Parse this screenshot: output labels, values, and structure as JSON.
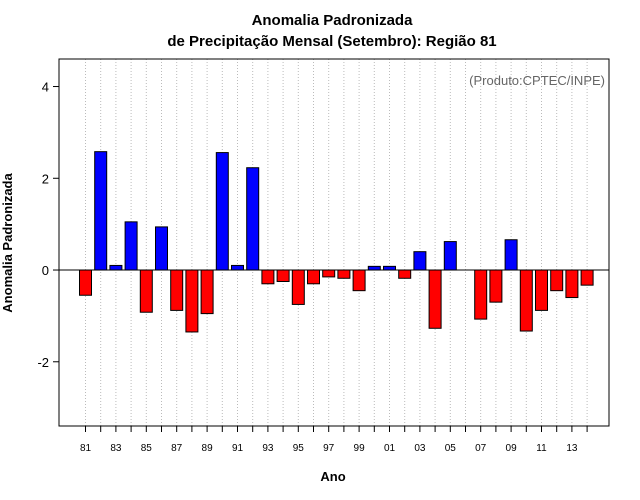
{
  "chart_data": {
    "type": "bar",
    "title": "Anomalia Padronizada",
    "subtitle": "de Precipitação Mensal (Setembro): Região 81",
    "xlabel": "Ano",
    "ylabel": "Anomalia Padronizada",
    "annotation": "(Produto:CPTEC/INPE)",
    "ylim": [
      -3.4,
      4.6
    ],
    "yticks": [
      -2,
      0,
      2,
      4
    ],
    "grid": "vertical dotted",
    "colors": {
      "positive": "#0000ff",
      "negative": "#ff0000",
      "grid": "#bbbbbb"
    },
    "categories": [
      "81",
      "82",
      "83",
      "84",
      "85",
      "86",
      "87",
      "88",
      "89",
      "90",
      "91",
      "92",
      "93",
      "94",
      "95",
      "96",
      "97",
      "98",
      "99",
      "00",
      "01",
      "02",
      "03",
      "04",
      "05",
      "06",
      "07",
      "08",
      "09",
      "10",
      "11",
      "12",
      "13",
      "14"
    ],
    "xtick_labels": [
      "81",
      "83",
      "85",
      "87",
      "89",
      "91",
      "93",
      "95",
      "97",
      "99",
      "01",
      "03",
      "05",
      "07",
      "09",
      "11",
      "13"
    ],
    "values": [
      -0.55,
      2.58,
      0.1,
      1.05,
      -0.92,
      0.94,
      -0.88,
      -1.35,
      -0.95,
      2.56,
      0.1,
      2.23,
      -0.3,
      -0.25,
      -0.75,
      -0.3,
      -0.15,
      -0.18,
      -0.45,
      0.08,
      0.08,
      -0.18,
      0.4,
      -1.27,
      0.62,
      0.0,
      -1.07,
      -0.7,
      0.66,
      -1.33,
      -0.88,
      -0.45,
      -0.6,
      -0.33
    ]
  }
}
